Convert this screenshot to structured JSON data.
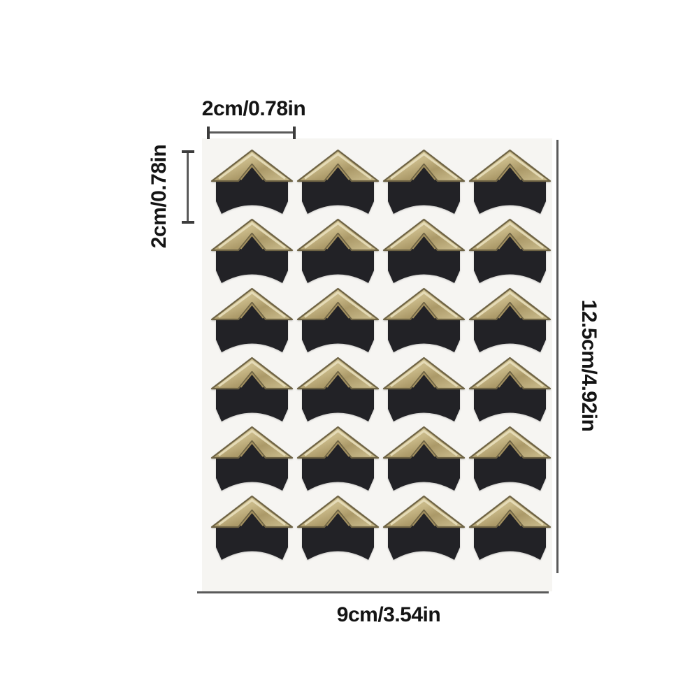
{
  "product": {
    "grid": {
      "rows": 6,
      "cols": 4,
      "sticker_count": 24
    }
  },
  "dimensions": {
    "corner_width": "2cm/0.78in",
    "corner_height": "2cm/0.78in",
    "sheet_height": "12.5cm/4.92in",
    "sheet_width": "9cm/3.54in"
  },
  "colors": {
    "gold_light": "#e8dfbd",
    "gold_mid": "#c7b786",
    "gold_deep": "#a3905f",
    "gold_edge": "#6e6344",
    "gold_grad_1": "#d8cc9e",
    "gold_grad_2": "#c7b786",
    "gold_grad_3": "#ab9968",
    "gold_grad_4": "#cfc192",
    "black": "#222226",
    "line_color": "#5a5a5a",
    "tick_color": "#3c3c3c",
    "text_color": "#141414",
    "sheet": "#f6f5f2",
    "background": "#ffffff"
  }
}
